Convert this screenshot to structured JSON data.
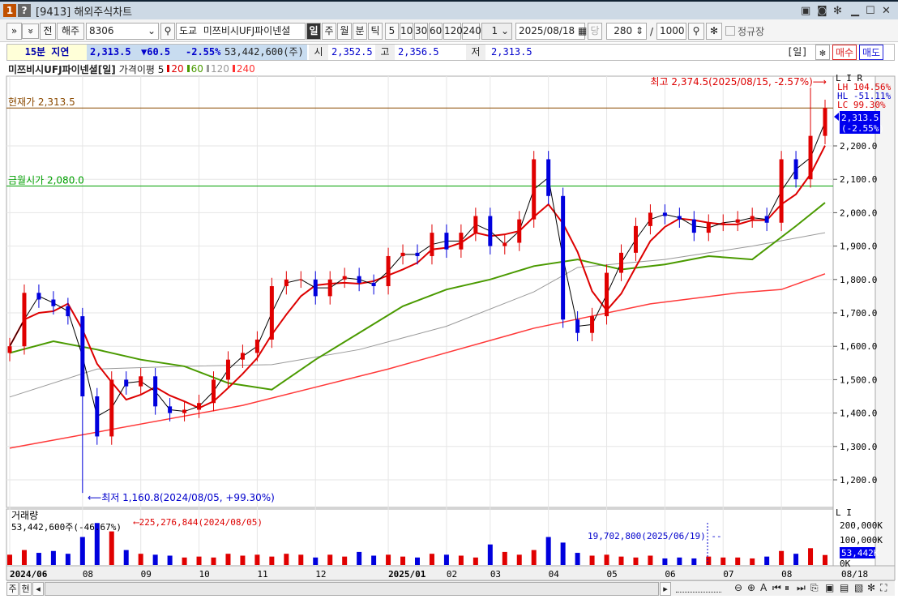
{
  "window": {
    "badge1": "1",
    "badge2": "?",
    "title": "[9413] 해외주식차트",
    "controls": [
      "restore-icon",
      "copy-icon",
      "camera-icon",
      "gear-icon",
      "minimize-icon",
      "maximize-icon",
      "close-icon"
    ]
  },
  "toolbar": {
    "expand": "»",
    "collapse": "»",
    "prev": "전",
    "market": "해주",
    "code": "8306",
    "exchange": "도교",
    "name": "미쯔비시UFJ파이넨셜",
    "periods": [
      "일",
      "주",
      "월",
      "분",
      "틱"
    ],
    "active_period": "일",
    "minutes": [
      "5",
      "10",
      "30",
      "60",
      "120",
      "240"
    ],
    "unit": "1",
    "date": "2025/08/18",
    "dang": "당",
    "count": "280",
    "slash": "/",
    "total": "1000",
    "regular_label": "정규장"
  },
  "info": {
    "delay": "15분 지연",
    "price": "2,313.5",
    "change": "▼60.5",
    "pct": "-2.55%",
    "volume": "53,442,600(주)",
    "open_label": "시",
    "open": "2,352.5",
    "high_label": "고",
    "high": "2,356.5",
    "low_label": "저",
    "low": "2,313.5",
    "period_tag": "[일]",
    "buy": "매수",
    "sell": "매도"
  },
  "legend": {
    "name": "미쯔비시UFJ파이넨셜[일]",
    "ma_label": "가격이평 5",
    "ma": [
      {
        "label": "20",
        "color": "#e00000"
      },
      {
        "label": "60",
        "color": "#4a9a00"
      },
      {
        "label": "120",
        "color": "#999999"
      },
      {
        "label": "240",
        "color": "#ff3030"
      }
    ]
  },
  "annotations": {
    "current": "현재가 2,313.5",
    "friday_open": "금월시가 2,080.0",
    "high": "최고 2,374.5(2025/08/15, -2.57%)⟶",
    "low": "⟵최저 1,160.8(2024/08/05, +99.30%)",
    "lh": "LH 104.56%",
    "hl": "HL -51.11%",
    "lc": "LC  99.30%",
    "price_tag": "2,313.5",
    "price_tag_pct": "(-2.55%)",
    "vol_title": "거래량",
    "vol_current": "53,442,600주(-46.67%)",
    "vol_max": "⟵225,276,844(2024/08/05)",
    "vol_marker": "19,702,800(2025/06/19) --",
    "vol_tag": "53,442K",
    "lir": "L I R",
    "li": "L I"
  },
  "colors": {
    "up": "#e00000",
    "down": "#0000dd",
    "ma5": "#000000",
    "ma20": "#dd0000",
    "ma60": "#4a9a00",
    "ma120": "#999999",
    "ma240": "#ff3838",
    "current_line": "#8b4a00",
    "open_line": "#00a000"
  },
  "chart_data": {
    "type": "candlestick",
    "y_ticks": [
      "1,200.0",
      "1,300.0",
      "1,400.0",
      "1,500.0",
      "1,600.0",
      "1,700.0",
      "1,800.0",
      "1,900.0",
      "2,000.0",
      "2,100.0",
      "2,200.0"
    ],
    "ylim": [
      1200,
      2200
    ],
    "current": 2313.5,
    "month_open": 2080.0,
    "high": 2374.5,
    "low": 1160.8,
    "closes": [
      1600,
      1760,
      1740,
      1720,
      1690,
      1450,
      1330,
      1500,
      1480,
      1510,
      1420,
      1400,
      1410,
      1430,
      1500,
      1560,
      1580,
      1620,
      1780,
      1800,
      1800,
      1750,
      1800,
      1810,
      1790,
      1780,
      1870,
      1880,
      1870,
      1940,
      1890,
      1940,
      1990,
      1900,
      1910,
      1980,
      2160,
      2050,
      1680,
      1640,
      1690,
      1820,
      1880,
      1960,
      2000,
      1990,
      1980,
      1940,
      1970,
      1970,
      1980,
      1990,
      1970,
      2160,
      2100,
      2230,
      2313.5
    ],
    "ma60": [
      [
        0,
        1580
      ],
      [
        3,
        1615
      ],
      [
        6,
        1590
      ],
      [
        9,
        1560
      ],
      [
        12,
        1540
      ],
      [
        15,
        1490
      ],
      [
        18,
        1470
      ],
      [
        21,
        1560
      ],
      [
        24,
        1640
      ],
      [
        27,
        1720
      ],
      [
        30,
        1770
      ],
      [
        33,
        1800
      ],
      [
        36,
        1840
      ],
      [
        39,
        1860
      ],
      [
        42,
        1830
      ],
      [
        45,
        1845
      ],
      [
        48,
        1870
      ],
      [
        51,
        1860
      ],
      [
        54,
        1960
      ],
      [
        56,
        2030
      ]
    ],
    "ma120": [
      [
        0,
        1448
      ],
      [
        6,
        1532
      ],
      [
        12,
        1540
      ],
      [
        18,
        1545
      ],
      [
        24,
        1590
      ],
      [
        30,
        1660
      ],
      [
        36,
        1763
      ],
      [
        39,
        1836
      ],
      [
        45,
        1860
      ],
      [
        51,
        1900
      ],
      [
        56,
        1940
      ]
    ],
    "ma240": [
      [
        0,
        1295
      ],
      [
        16,
        1423
      ],
      [
        26,
        1532
      ],
      [
        36,
        1654
      ],
      [
        44,
        1727
      ],
      [
        50,
        1760
      ],
      [
        53,
        1770
      ],
      [
        56,
        1817
      ]
    ],
    "volume_k": [
      55,
      80,
      65,
      75,
      60,
      150,
      225,
      180,
      80,
      60,
      55,
      50,
      40,
      45,
      40,
      60,
      50,
      55,
      45,
      60,
      55,
      40,
      55,
      45,
      70,
      50,
      55,
      45,
      40,
      60,
      55,
      50,
      40,
      110,
      70,
      55,
      80,
      150,
      120,
      65,
      50,
      55,
      45,
      40,
      50,
      35,
      40,
      35,
      45,
      40,
      40,
      35,
      45,
      75,
      60,
      90,
      53.4
    ],
    "volume_ticks": [
      "200,000K",
      "100,000K",
      "0K"
    ],
    "x_ticks": [
      {
        "label": "2024/06",
        "index": 0,
        "bold": true
      },
      {
        "label": "08",
        "index": 5
      },
      {
        "label": "09",
        "index": 9
      },
      {
        "label": "10",
        "index": 13
      },
      {
        "label": "11",
        "index": 17
      },
      {
        "label": "12",
        "index": 21
      },
      {
        "label": "2025/01",
        "index": 26,
        "bold": true
      },
      {
        "label": "02",
        "index": 30
      },
      {
        "label": "03",
        "index": 33
      },
      {
        "label": "04",
        "index": 37
      },
      {
        "label": "05",
        "index": 41
      },
      {
        "label": "06",
        "index": 45
      },
      {
        "label": "07",
        "index": 49
      },
      {
        "label": "08",
        "index": 53
      }
    ],
    "last_date": "08/18"
  },
  "bottom": {
    "week": "주",
    "current": "현"
  }
}
